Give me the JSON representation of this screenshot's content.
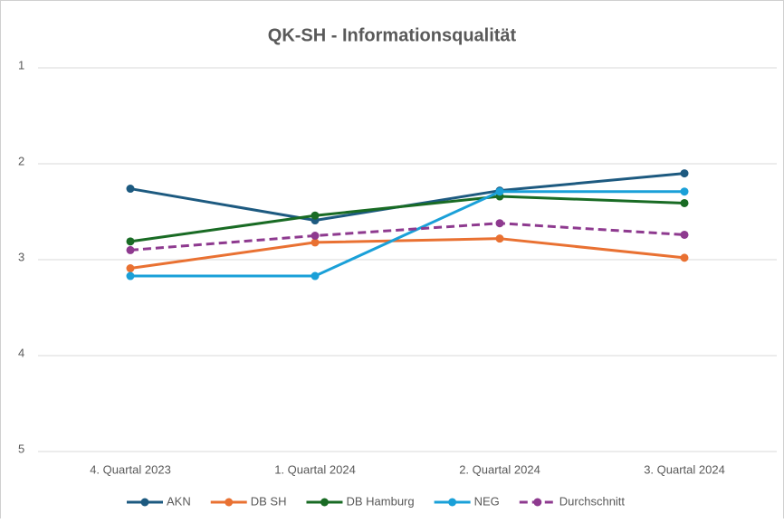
{
  "chart_data": {
    "type": "line",
    "title": "QK-SH - Informationsqualität",
    "categories": [
      "4. Quartal 2023",
      "1. Quartal 2024",
      "2. Quartal 2024",
      "3. Quartal 2024"
    ],
    "series": [
      {
        "name": "AKN",
        "color": "#1d5a80",
        "values": [
          2.26,
          2.59,
          2.28,
          2.1
        ]
      },
      {
        "name": "DB SH",
        "color": "#e97132",
        "values": [
          3.09,
          2.82,
          2.78,
          2.98
        ]
      },
      {
        "name": "DB Hamburg",
        "color": "#196b24",
        "values": [
          2.81,
          2.54,
          2.34,
          2.41
        ]
      },
      {
        "name": "NEG",
        "color": "#1aa0d8",
        "values": [
          3.17,
          3.17,
          2.29,
          2.29
        ]
      },
      {
        "name": "Durchschnitt",
        "color": "#8e3a8f",
        "dashed": true,
        "values": [
          2.9,
          2.75,
          2.62,
          2.74
        ]
      }
    ],
    "ylim": [
      1,
      5
    ],
    "y_inverted": true,
    "yticks": [
      1,
      2,
      3,
      4,
      5
    ],
    "grid": true,
    "legend": "bottom"
  }
}
